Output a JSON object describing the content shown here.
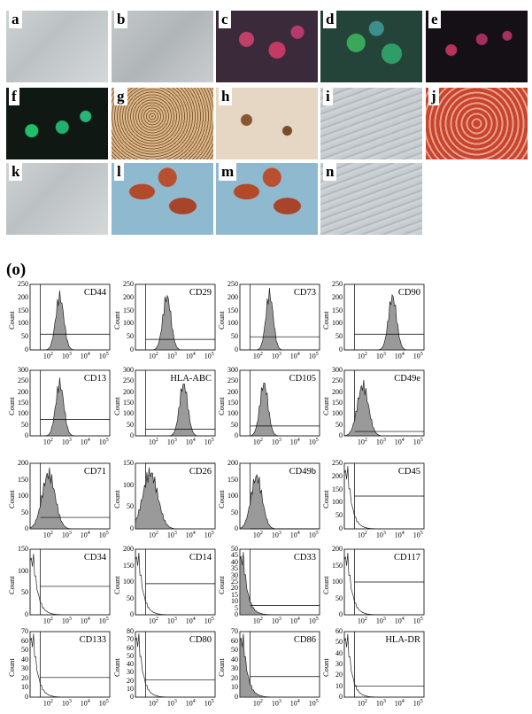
{
  "photo_panels": [
    {
      "label": "a",
      "kind": "phase"
    },
    {
      "label": "b",
      "kind": "phase-dense"
    },
    {
      "label": "c",
      "kind": "fluor-red"
    },
    {
      "label": "d",
      "kind": "fluor-green"
    },
    {
      "label": "e",
      "kind": "fluor-dark-red"
    },
    {
      "label": "f",
      "kind": "fluor-dark-green"
    },
    {
      "label": "g",
      "kind": "stain-brown"
    },
    {
      "label": "h",
      "kind": "stain-light"
    },
    {
      "label": "i",
      "kind": "phase-aligned"
    },
    {
      "label": "j",
      "kind": "stain-red"
    },
    {
      "label": "k",
      "kind": "phase"
    },
    {
      "label": "l",
      "kind": "stain-blue-red"
    },
    {
      "label": "m",
      "kind": "stain-blue-red"
    },
    {
      "label": "n",
      "kind": "phase-aligned"
    }
  ],
  "flow_label": "(o)",
  "colors": {
    "hist_fill": "#9a9a9a",
    "hist_line": "#222222",
    "frame": "#000000"
  },
  "flow_panels": [
    {
      "marker": "CD44",
      "yticks": [
        "0",
        "50",
        "100",
        "150",
        "200",
        "250"
      ],
      "ymax": 250,
      "peak_log": 2.6,
      "width": 0.22,
      "height": 230,
      "gate": 60,
      "filled": true
    },
    {
      "marker": "CD29",
      "yticks": [
        "0",
        "50",
        "100",
        "150",
        "200",
        "250"
      ],
      "ymax": 250,
      "peak_log": 2.7,
      "width": 0.22,
      "height": 230,
      "gate": 40,
      "filled": true
    },
    {
      "marker": "CD73",
      "yticks": [
        "0",
        "50",
        "100",
        "150",
        "200",
        "250"
      ],
      "ymax": 250,
      "peak_log": 2.6,
      "width": 0.2,
      "height": 240,
      "gate": 50,
      "filled": true
    },
    {
      "marker": "CD90",
      "yticks": [
        "0",
        "50",
        "100",
        "150",
        "200",
        "250"
      ],
      "ymax": 250,
      "peak_log": 3.6,
      "width": 0.22,
      "height": 230,
      "gate": 60,
      "filled": true
    },
    {
      "marker": "CD13",
      "yticks": [
        "0",
        "50",
        "100",
        "150",
        "200",
        "250",
        "300"
      ],
      "ymax": 300,
      "peak_log": 2.6,
      "width": 0.22,
      "height": 270,
      "gate": 75,
      "filled": true
    },
    {
      "marker": "HLA-ABC",
      "yticks": [
        "0",
        "50",
        "100",
        "150",
        "200",
        "250",
        "300"
      ],
      "ymax": 300,
      "peak_log": 3.6,
      "width": 0.22,
      "height": 270,
      "gate": 30,
      "filled": true
    },
    {
      "marker": "CD105",
      "yticks": [
        "0",
        "50",
        "100",
        "150",
        "200",
        "250",
        "300"
      ],
      "ymax": 300,
      "peak_log": 2.3,
      "width": 0.22,
      "height": 270,
      "gate": 45,
      "filled": true
    },
    {
      "marker": "CD49e",
      "yticks": [
        "0",
        "50",
        "100",
        "150",
        "200",
        "250",
        "300"
      ],
      "ymax": 300,
      "peak_log": 2.0,
      "width": 0.3,
      "height": 260,
      "gate": 20,
      "filled": true
    },
    {
      "marker": "CD71",
      "yticks": [
        "0",
        "50",
        "100",
        "150",
        "200"
      ],
      "ymax": 200,
      "peak_log": 2.0,
      "width": 0.35,
      "height": 190,
      "gate": 35,
      "filled": true
    },
    {
      "marker": "CD26",
      "yticks": [
        "0",
        "50",
        "100",
        "150"
      ],
      "ymax": 150,
      "peak_log": 1.8,
      "width": 0.4,
      "height": 145,
      "gate": 150,
      "filled": true
    },
    {
      "marker": "CD49b",
      "yticks": [
        "0",
        "50",
        "100",
        "150",
        "200"
      ],
      "ymax": 200,
      "peak_log": 1.9,
      "width": 0.3,
      "height": 180,
      "gate": 0,
      "filled": true
    },
    {
      "marker": "CD45",
      "yticks": [
        "0",
        "50",
        "100",
        "150",
        "200",
        "250"
      ],
      "ymax": 250,
      "peak_log": 1.2,
      "width": 0.3,
      "height": 240,
      "gate": 125,
      "filled": false
    },
    {
      "marker": "CD34",
      "yticks": [
        "0",
        "50",
        "100",
        "150"
      ],
      "ymax": 150,
      "peak_log": 1.2,
      "width": 0.3,
      "height": 140,
      "gate": 65,
      "filled": false
    },
    {
      "marker": "CD14",
      "yticks": [
        "0",
        "50",
        "100",
        "150",
        "200"
      ],
      "ymax": 200,
      "peak_log": 1.2,
      "width": 0.3,
      "height": 190,
      "gate": 95,
      "filled": false
    },
    {
      "marker": "CD33",
      "yticks": [
        "0",
        "5",
        "10",
        "15",
        "20",
        "25",
        "30",
        "35",
        "40",
        "45",
        "50"
      ],
      "ymax": 50,
      "peak_log": 1.2,
      "width": 0.3,
      "height": 48,
      "gate": 7,
      "filled": true
    },
    {
      "marker": "CD117",
      "yticks": [
        "0",
        "50",
        "100",
        "150",
        "200"
      ],
      "ymax": 200,
      "peak_log": 1.2,
      "width": 0.3,
      "height": 190,
      "gate": 100,
      "filled": false
    },
    {
      "marker": "CD133",
      "yticks": [
        "0",
        "10",
        "20",
        "30",
        "40",
        "50",
        "60",
        "70"
      ],
      "ymax": 70,
      "peak_log": 1.2,
      "width": 0.3,
      "height": 68,
      "gate": 21,
      "filled": false
    },
    {
      "marker": "CD80",
      "yticks": [
        "0",
        "10",
        "20",
        "30",
        "40",
        "50",
        "60",
        "70",
        "80"
      ],
      "ymax": 80,
      "peak_log": 1.2,
      "width": 0.3,
      "height": 78,
      "gate": 21,
      "filled": false
    },
    {
      "marker": "CD86",
      "yticks": [
        "0",
        "10",
        "20",
        "30",
        "40",
        "50",
        "60",
        "70"
      ],
      "ymax": 70,
      "peak_log": 1.2,
      "width": 0.3,
      "height": 68,
      "gate": 22,
      "filled": true
    },
    {
      "marker": "HLA-DR",
      "yticks": [
        "0",
        "10",
        "20",
        "30",
        "40",
        "50",
        "60"
      ],
      "ymax": 60,
      "peak_log": 1.2,
      "width": 0.3,
      "height": 58,
      "gate": 10,
      "filled": false
    }
  ],
  "axis": {
    "ylabel": "Count",
    "xticks": [
      {
        "base": "10",
        "exp": "2"
      },
      {
        "base": "10",
        "exp": "3"
      },
      {
        "base": "10",
        "exp": "4"
      },
      {
        "base": "10",
        "exp": "5"
      }
    ]
  }
}
